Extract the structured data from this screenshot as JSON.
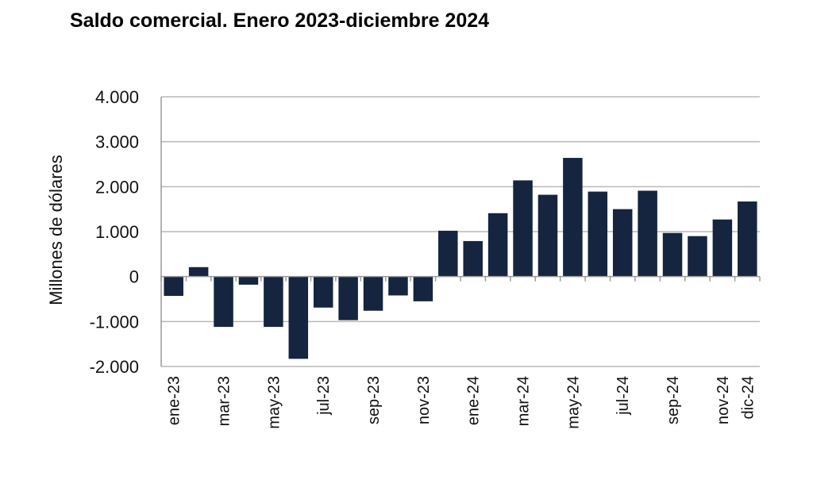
{
  "chart_data": {
    "type": "bar",
    "title": "Saldo comercial. Enero 2023-diciembre 2024",
    "xlabel": "",
    "ylabel": "Millones de dólares",
    "ylim": [
      -2000,
      4000
    ],
    "yticks": [
      4000,
      3000,
      2000,
      1000,
      0,
      -1000,
      -2000
    ],
    "ytick_labels": [
      "4.000",
      "3.000",
      "2.000",
      "1.000",
      "0",
      "-1.000",
      "-2.000"
    ],
    "grid": true,
    "legend": "none",
    "colors": {
      "bar": "#15243F",
      "grid": "#b8b8b8",
      "axis": "#9a9a9a"
    },
    "categories": [
      "ene-23",
      "feb-23",
      "mar-23",
      "abr-23",
      "may-23",
      "jun-23",
      "jul-23",
      "ago-23",
      "sep-23",
      "oct-23",
      "nov-23",
      "dic-23",
      "ene-24",
      "feb-24",
      "mar-24",
      "abr-24",
      "may-24",
      "jun-24",
      "jul-24",
      "ago-24",
      "sep-24",
      "oct-24",
      "nov-24",
      "dic-24"
    ],
    "tick_labels": [
      "ene-23",
      "",
      "mar-23",
      "",
      "may-23",
      "",
      "jul-23",
      "",
      "sep-23",
      "",
      "nov-23",
      "",
      "ene-24",
      "",
      "mar-24",
      "",
      "may-24",
      "",
      "jul-24",
      "",
      "sep-24",
      "",
      "nov-24",
      "dic-24"
    ],
    "values": [
      -430,
      210,
      -1120,
      -180,
      -1120,
      -1830,
      -690,
      -970,
      -760,
      -420,
      -550,
      1020,
      790,
      1410,
      2140,
      1820,
      2640,
      1890,
      1500,
      1910,
      970,
      900,
      1270,
      1670
    ]
  }
}
